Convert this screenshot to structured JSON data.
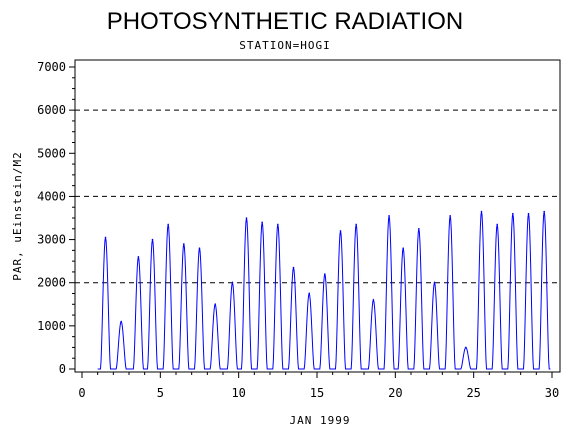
{
  "chart_data": {
    "type": "line",
    "title": "PHOTOSYNTHETIC RADIATION",
    "subtitle": "STATION=HOGI",
    "xlabel": "JAN 1999",
    "ylabel": "PAR, uEinstein/M2",
    "xlim": [
      0,
      30
    ],
    "ylim": [
      0,
      7000
    ],
    "x_ticks": [
      0,
      5,
      10,
      15,
      20,
      25,
      30
    ],
    "y_ticks": [
      0,
      1000,
      2000,
      3000,
      4000,
      5000,
      6000,
      7000
    ],
    "reference_lines": [
      2000,
      4000,
      6000
    ],
    "line_color": "#0000ff",
    "grid": false,
    "series": [
      {
        "daily_peaks": [
          {
            "day": 1.5,
            "value": 3050
          },
          {
            "day": 2.5,
            "value": 1100
          },
          {
            "day": 3.6,
            "value": 2600
          },
          {
            "day": 4.5,
            "value": 3000
          },
          {
            "day": 5.5,
            "value": 3350
          },
          {
            "day": 6.5,
            "value": 2900
          },
          {
            "day": 7.5,
            "value": 2800
          },
          {
            "day": 8.5,
            "value": 1500
          },
          {
            "day": 9.6,
            "value": 2000
          },
          {
            "day": 10.5,
            "value": 3500
          },
          {
            "day": 11.5,
            "value": 3400
          },
          {
            "day": 12.5,
            "value": 3350
          },
          {
            "day": 13.5,
            "value": 2350
          },
          {
            "day": 14.5,
            "value": 1750
          },
          {
            "day": 15.5,
            "value": 2200
          },
          {
            "day": 16.5,
            "value": 3200
          },
          {
            "day": 17.5,
            "value": 3350
          },
          {
            "day": 18.6,
            "value": 1600
          },
          {
            "day": 19.6,
            "value": 3550
          },
          {
            "day": 20.5,
            "value": 2800
          },
          {
            "day": 21.5,
            "value": 3250
          },
          {
            "day": 22.5,
            "value": 2000
          },
          {
            "day": 23.5,
            "value": 3550
          },
          {
            "day": 24.5,
            "value": 500
          },
          {
            "day": 25.5,
            "value": 3650
          },
          {
            "day": 26.5,
            "value": 3350
          },
          {
            "day": 27.5,
            "value": 3600
          },
          {
            "day": 28.5,
            "value": 3600
          },
          {
            "day": 29.5,
            "value": 3650
          }
        ]
      }
    ]
  }
}
